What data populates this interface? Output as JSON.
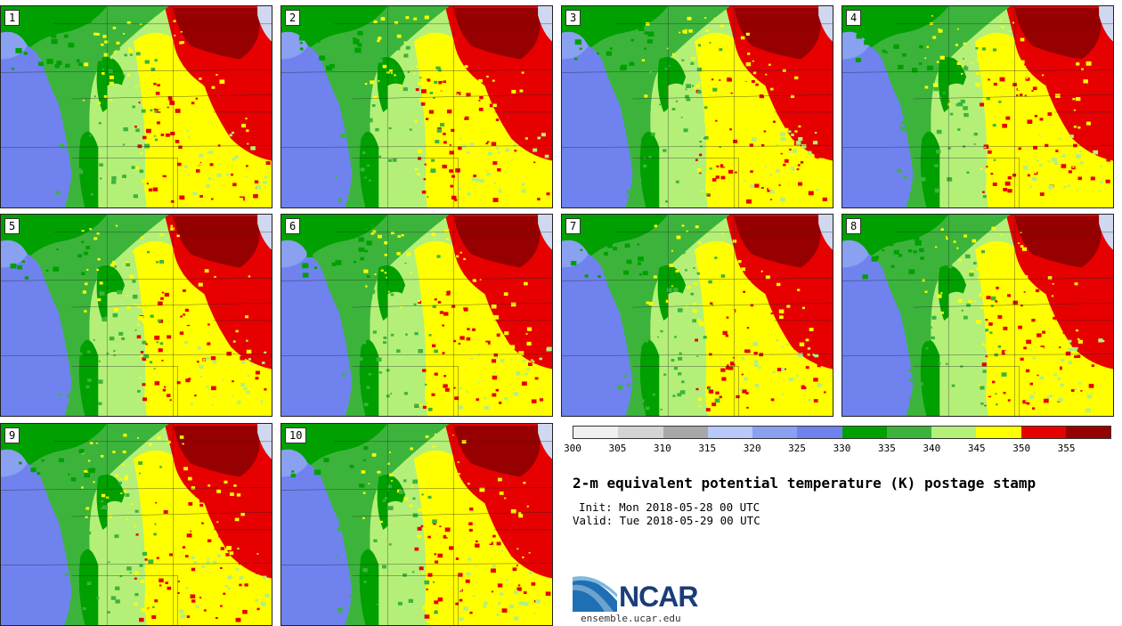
{
  "panels": [
    {
      "label": "1"
    },
    {
      "label": "2"
    },
    {
      "label": "3"
    },
    {
      "label": "4"
    },
    {
      "label": "5"
    },
    {
      "label": "6"
    },
    {
      "label": "7"
    },
    {
      "label": "8"
    },
    {
      "label": "9"
    },
    {
      "label": "10"
    }
  ],
  "colorbar": {
    "colors": [
      "#f0f0f0",
      "#d4d4d4",
      "#a8a8a8",
      "#b8c8f8",
      "#8aa0f0",
      "#6f82ee",
      "#00a000",
      "#3cb43c",
      "#b4f078",
      "#ffff00",
      "#e60000",
      "#960000"
    ],
    "labels": [
      "300",
      "305",
      "310",
      "315",
      "320",
      "325",
      "330",
      "335",
      "340",
      "345",
      "350",
      "355"
    ]
  },
  "title": "2-m equivalent potential temperature (K) postage stamp",
  "init": "Init: Mon 2018-05-28 00 UTC",
  "valid": "Valid: Tue 2018-05-29 00 UTC",
  "logo": {
    "text": "NCAR",
    "url": "ensemble.ucar.edu"
  },
  "map_colors": {
    "ocean": "#6f82ee",
    "light_blue": "#8aa0f0",
    "dark_green": "#00a000",
    "green": "#3cb43c",
    "light_green": "#b4f078",
    "yellow": "#ffff00",
    "red": "#e60000",
    "dark_red": "#960000",
    "lake": "#d0d8f0"
  }
}
